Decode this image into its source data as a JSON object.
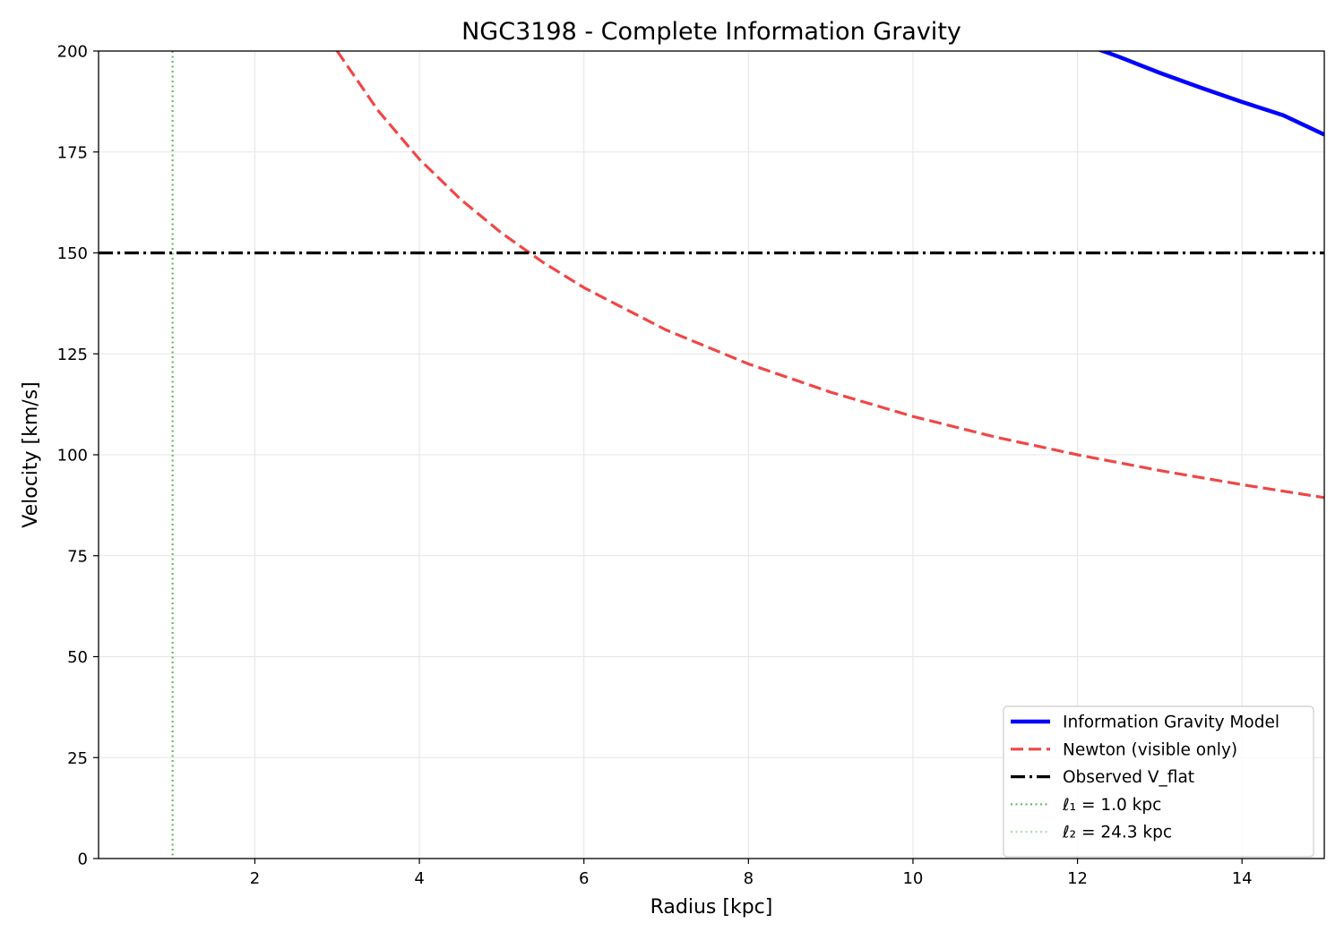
{
  "chart_data": {
    "type": "line",
    "title": "NGC3198 - Complete Information Gravity",
    "xlabel": "Radius [kpc]",
    "ylabel": "Velocity [km/s]",
    "xlim": [
      0.1,
      15
    ],
    "ylim": [
      0,
      200
    ],
    "xticks": [
      2,
      4,
      6,
      8,
      10,
      12,
      14
    ],
    "yticks": [
      0,
      25,
      50,
      75,
      100,
      125,
      150,
      175,
      200
    ],
    "grid": true,
    "legend_position": "lower-right",
    "series": [
      {
        "name": "Information Gravity Model",
        "style": "solid",
        "color": "#0000ff",
        "x": [
          12.2,
          12.5,
          13.0,
          13.5,
          14.0,
          14.5,
          15.0
        ],
        "y": [
          200.8,
          198.6,
          194.6,
          190.9,
          187.4,
          184.1,
          179.3
        ]
      },
      {
        "name": "Newton (visible only)",
        "style": "dashed",
        "color": "#f04646",
        "x": [
          3.0,
          3.5,
          4.0,
          4.5,
          5.0,
          5.5,
          6.0,
          7.0,
          8.0,
          9.0,
          10.0,
          11.0,
          12.0,
          13.0,
          14.0,
          15.0
        ],
        "y": [
          200.0,
          185.2,
          173.2,
          163.3,
          154.9,
          147.7,
          141.4,
          130.9,
          122.5,
          115.5,
          109.5,
          104.4,
          100.0,
          96.1,
          92.6,
          89.4
        ]
      },
      {
        "name": "Observed V_flat",
        "style": "dash-dot",
        "color": "#000000",
        "x": [
          0.1,
          15.0
        ],
        "y": [
          150,
          150
        ]
      }
    ],
    "vlines": [
      {
        "name": "ℓ₁ = 1.0 kpc",
        "x": 1.0,
        "style": "dotted",
        "color": "#66bb66",
        "visible_in_range": true
      },
      {
        "name": "ℓ₂ = 24.3 kpc",
        "x": 24.3,
        "style": "dotted",
        "color": "#a8dca8",
        "visible_in_range": false
      }
    ]
  }
}
